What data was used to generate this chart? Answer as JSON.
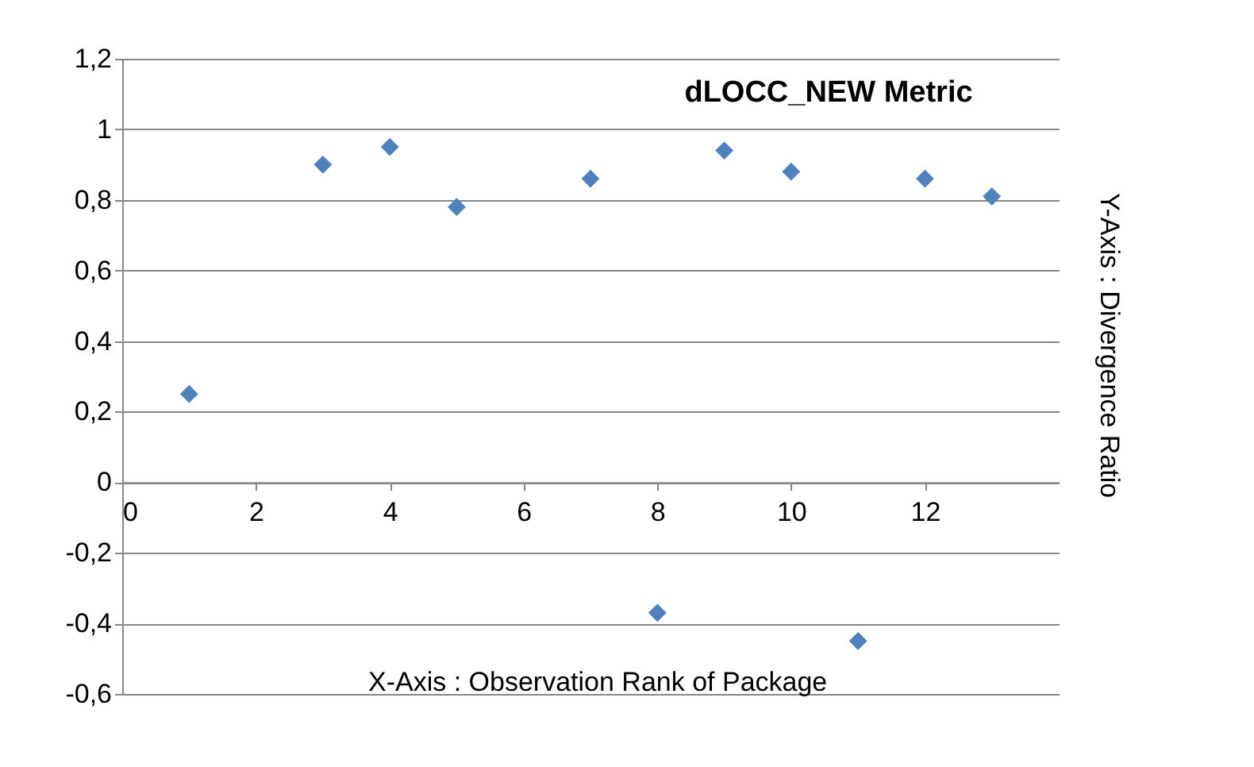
{
  "chart_data": {
    "type": "scatter",
    "title": "dLOCC_NEW Metric",
    "xlabel": "X-Axis : Observation Rank of Package",
    "ylabel": "Y-Axis : Divergence Ratio",
    "x": [
      1,
      3,
      4,
      5,
      7,
      8,
      9,
      10,
      11,
      12,
      13
    ],
    "series": [
      {
        "color": "#4f81bd",
        "values": [
          0.25,
          0.9,
          0.95,
          0.78,
          0.86,
          -0.37,
          0.94,
          0.88,
          -0.45,
          0.86,
          0.81
        ]
      }
    ],
    "xlim": [
      0,
      14
    ],
    "xticks": [
      0,
      2,
      4,
      6,
      8,
      10,
      12
    ],
    "ylim": [
      -0.6,
      1.2
    ],
    "yticks": [
      {
        "value": -0.6,
        "label": "-0,6"
      },
      {
        "value": -0.4,
        "label": "-0,4"
      },
      {
        "value": -0.2,
        "label": "-0,2"
      },
      {
        "value": 0,
        "label": "0"
      },
      {
        "value": 0.2,
        "label": "0,2"
      },
      {
        "value": 0.4,
        "label": "0,4"
      },
      {
        "value": 0.6,
        "label": "0,6"
      },
      {
        "value": 0.8,
        "label": "0,8"
      },
      {
        "value": 1,
        "label": "1"
      },
      {
        "value": 1.2,
        "label": "1,2"
      }
    ],
    "grid": "y",
    "marker": "diamond",
    "legend": false
  }
}
